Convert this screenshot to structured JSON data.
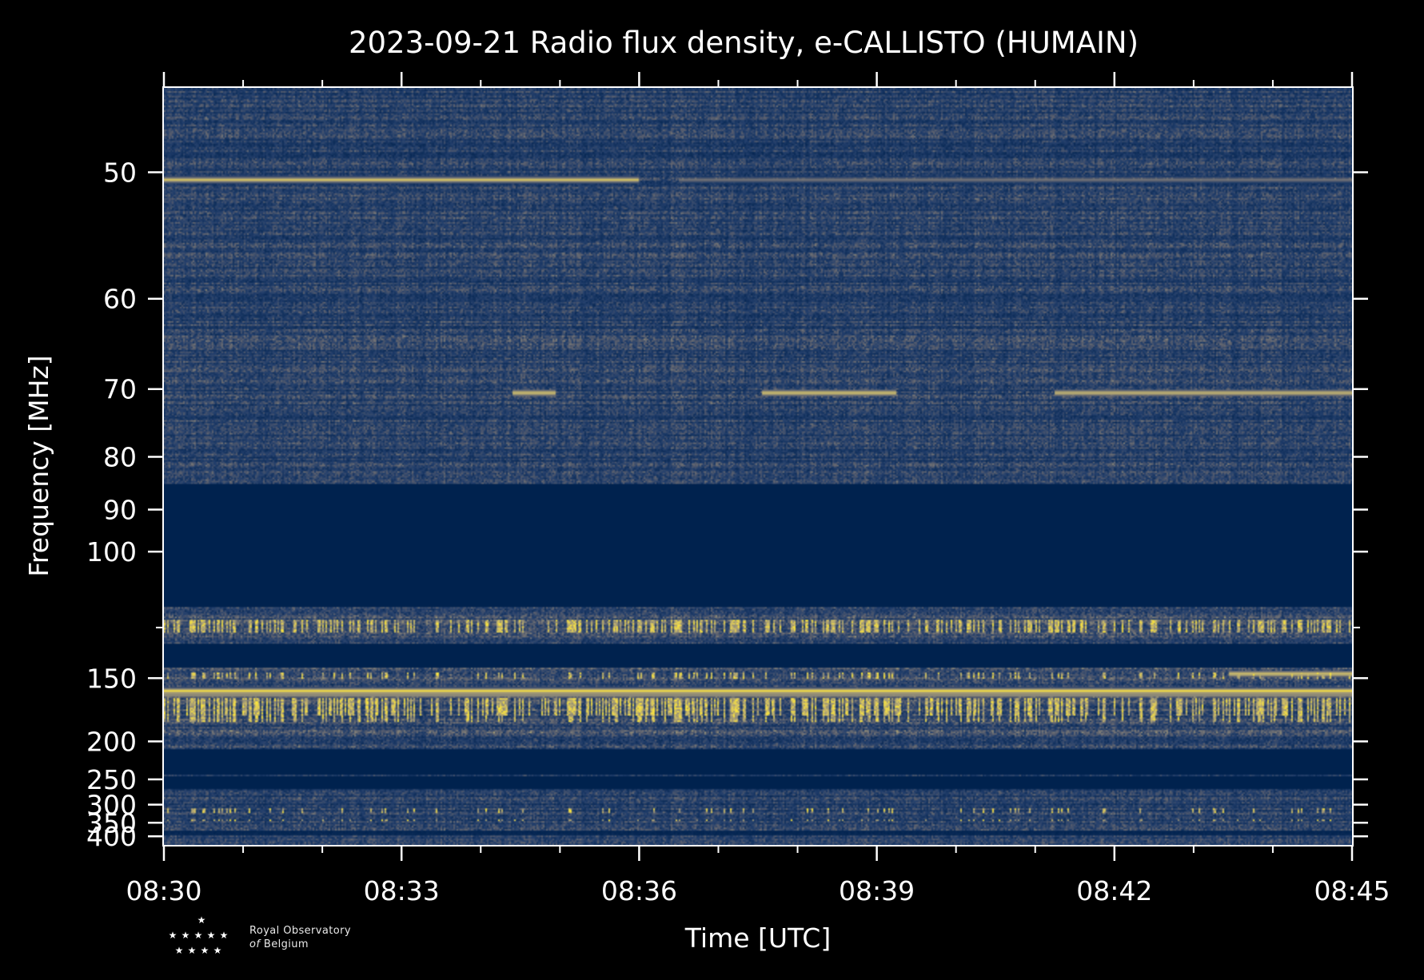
{
  "chart_data": {
    "type": "heatmap",
    "title": "2023-09-21 Radio flux density, e-CALLISTO (HUMAIN)",
    "xlabel": "Time [UTC]",
    "ylabel": "Frequency [MHz]",
    "x_ticks": [
      "08:30",
      "08:33",
      "08:36",
      "08:39",
      "08:42",
      "08:45"
    ],
    "x_tick_minutes": [
      0,
      3,
      6,
      9,
      12,
      15
    ],
    "x_minor_tick_minutes": [
      1,
      2,
      4,
      5,
      7,
      8,
      10,
      11,
      13,
      14
    ],
    "x_range_minutes": [
      0,
      15
    ],
    "y_ticks": [
      50,
      60,
      70,
      80,
      90,
      100,
      150,
      200,
      250,
      300,
      350,
      400
    ],
    "y_ticks_labels": [
      "50",
      "60",
      "70",
      "80",
      "90",
      "100",
      "150",
      "200",
      "250",
      "300",
      "350",
      "400"
    ],
    "y_minor_ticks": [
      125
    ],
    "y_scale": "reciprocal",
    "y_range_mhz": [
      45,
      440
    ],
    "colormap": [
      "#00224e",
      "#233f6c",
      "#575d6d",
      "#7c7b78",
      "#a69d75",
      "#d3c164",
      "#fee838"
    ],
    "background_color": "#000000",
    "grid": false,
    "bands": [
      {
        "f_lo": 45,
        "f_hi": 85,
        "level": 0.3,
        "noise": 0.55
      },
      {
        "f_lo": 85,
        "f_hi": 117,
        "level": 0.0,
        "noise": 0.0
      },
      {
        "f_lo": 117,
        "f_hi": 132,
        "level": 0.35,
        "noise": 0.8
      },
      {
        "f_lo": 132,
        "f_hi": 144,
        "level": 0.0,
        "noise": 0.0
      },
      {
        "f_lo": 144,
        "f_hi": 208,
        "level": 0.35,
        "noise": 0.75
      },
      {
        "f_lo": 208,
        "f_hi": 242,
        "level": 0.0,
        "noise": 0.0
      },
      {
        "f_lo": 242,
        "f_hi": 246,
        "level": 0.25,
        "noise": 0.4
      },
      {
        "f_lo": 246,
        "f_hi": 268,
        "level": 0.0,
        "noise": 0.0
      },
      {
        "f_lo": 268,
        "f_hi": 378,
        "level": 0.28,
        "noise": 0.6
      },
      {
        "f_lo": 378,
        "f_hi": 398,
        "level": 0.05,
        "noise": 0.1
      },
      {
        "f_lo": 398,
        "f_hi": 440,
        "level": 0.28,
        "noise": 0.55
      }
    ],
    "emission_lines": [
      {
        "f": 50.5,
        "t_start": 0.0,
        "t_end": 6.0,
        "intensity": 0.85
      },
      {
        "f": 50.5,
        "t_start": 6.5,
        "t_end": 15.0,
        "intensity": 0.45
      },
      {
        "f": 70.5,
        "t_start": 4.4,
        "t_end": 4.95,
        "intensity": 0.9
      },
      {
        "f": 70.5,
        "t_start": 7.55,
        "t_end": 9.25,
        "intensity": 0.9
      },
      {
        "f": 70.5,
        "t_start": 11.25,
        "t_end": 15.0,
        "intensity": 0.85
      },
      {
        "f": 147.5,
        "t_start": 13.45,
        "t_end": 15.0,
        "intensity": 0.9
      },
      {
        "f": 158,
        "t_start": 0.0,
        "t_end": 15.0,
        "intensity": 1.0
      },
      {
        "f": 160.5,
        "t_start": 0.0,
        "t_end": 15.0,
        "intensity": 0.7
      }
    ],
    "bursty_bands": [
      {
        "f_lo": 122,
        "f_hi": 127,
        "density": 0.35
      },
      {
        "f_lo": 147,
        "f_hi": 150,
        "density": 0.15
      },
      {
        "f_lo": 163,
        "f_hi": 176,
        "density": 0.45
      },
      {
        "f_lo": 176,
        "f_hi": 181,
        "density": 0.25
      },
      {
        "f_lo": 310,
        "f_hi": 320,
        "density": 0.1
      },
      {
        "f_lo": 338,
        "f_hi": 346,
        "density": 0.12
      }
    ]
  },
  "logo": {
    "line1": "Royal Observatory",
    "line2_of": "of",
    "line2_rest": "Belgium",
    "icon": "stars-logo-icon"
  }
}
